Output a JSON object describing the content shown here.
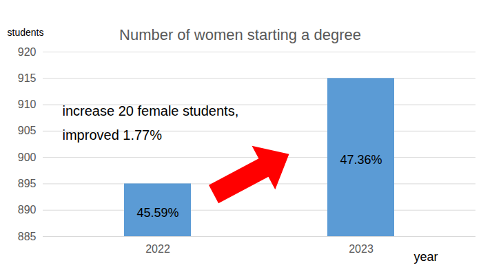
{
  "chart_data": {
    "type": "bar",
    "title": "Number of women starting a degree",
    "ylabel": "students",
    "xlabel": "year",
    "categories": [
      "2022",
      "2023"
    ],
    "values": [
      895,
      915
    ],
    "color": "#5b9bd5",
    "bar_labels": [
      "45.59%",
      "47.36%"
    ],
    "annotation": [
      "increase 20 female students,",
      "improved 1.77%"
    ],
    "ylim": [
      885,
      920
    ],
    "yticks": [
      885,
      890,
      895,
      900,
      905,
      910,
      915,
      920
    ],
    "grid": true
  }
}
